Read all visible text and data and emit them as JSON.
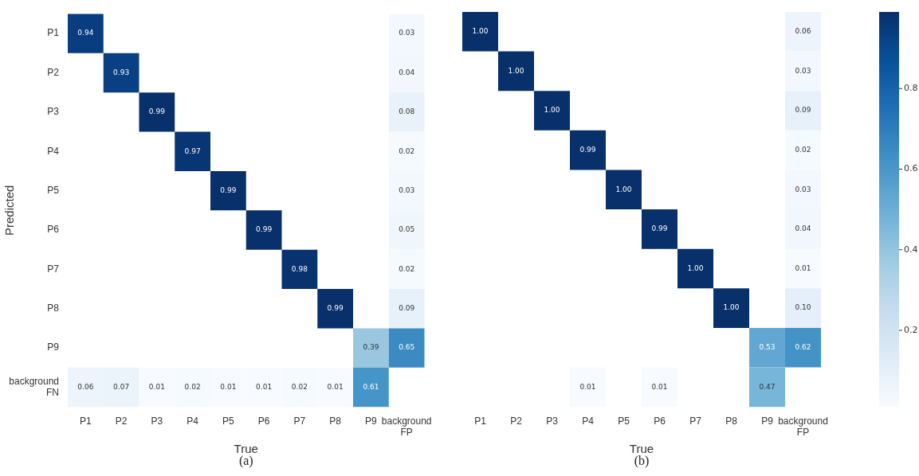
{
  "chart_data": [
    {
      "type": "heatmap",
      "xlabel": "True",
      "ylabel": "Predicted",
      "annotations": [
        "(a)"
      ],
      "categories": [
        "P1",
        "P2",
        "P3",
        "P4",
        "P5",
        "P6",
        "P7",
        "P8",
        "P9",
        "background FP"
      ],
      "y_categories": [
        "P1",
        "P2",
        "P3",
        "P4",
        "P5",
        "P6",
        "P7",
        "P8",
        "P9",
        "background FN"
      ],
      "cells": [
        [
          0.94,
          null,
          null,
          null,
          null,
          null,
          null,
          null,
          null,
          0.03
        ],
        [
          null,
          0.93,
          null,
          null,
          null,
          null,
          null,
          null,
          null,
          0.04
        ],
        [
          null,
          null,
          0.99,
          null,
          null,
          null,
          null,
          null,
          null,
          0.08
        ],
        [
          null,
          null,
          null,
          0.97,
          null,
          null,
          null,
          null,
          null,
          0.02
        ],
        [
          null,
          null,
          null,
          null,
          0.99,
          null,
          null,
          null,
          null,
          0.03
        ],
        [
          null,
          null,
          null,
          null,
          null,
          0.99,
          null,
          null,
          null,
          0.05
        ],
        [
          null,
          null,
          null,
          null,
          null,
          null,
          0.98,
          null,
          null,
          0.02
        ],
        [
          null,
          null,
          null,
          null,
          null,
          null,
          null,
          0.99,
          null,
          0.09
        ],
        [
          null,
          null,
          null,
          null,
          null,
          null,
          null,
          null,
          0.39,
          0.65
        ],
        [
          0.06,
          0.07,
          0.01,
          0.02,
          0.01,
          0.01,
          0.02,
          0.01,
          0.61,
          null
        ]
      ],
      "data_labels": true
    },
    {
      "type": "heatmap",
      "xlabel": "True",
      "annotations": [
        "(b)"
      ],
      "tick_labels": "x",
      "categories": [
        "P1",
        "P2",
        "P3",
        "P4",
        "P5",
        "P6",
        "P7",
        "P8",
        "P9",
        "background FP"
      ],
      "y_categories": [
        null,
        null,
        null,
        null,
        null,
        null,
        null,
        null,
        null,
        null
      ],
      "cells": [
        [
          1.0,
          null,
          null,
          null,
          null,
          null,
          null,
          null,
          null,
          0.06
        ],
        [
          null,
          1.0,
          null,
          null,
          null,
          null,
          null,
          null,
          null,
          0.03
        ],
        [
          null,
          null,
          1.0,
          null,
          null,
          null,
          null,
          null,
          null,
          0.09
        ],
        [
          null,
          null,
          null,
          0.99,
          null,
          null,
          null,
          null,
          null,
          0.02
        ],
        [
          null,
          null,
          null,
          null,
          1.0,
          null,
          null,
          null,
          null,
          0.03
        ],
        [
          null,
          null,
          null,
          null,
          null,
          0.99,
          null,
          null,
          null,
          0.04
        ],
        [
          null,
          null,
          null,
          null,
          null,
          null,
          1.0,
          null,
          null,
          0.01
        ],
        [
          null,
          null,
          null,
          null,
          null,
          null,
          null,
          1.0,
          null,
          0.1
        ],
        [
          null,
          null,
          null,
          null,
          null,
          null,
          null,
          null,
          0.53,
          0.62
        ],
        [
          null,
          null,
          null,
          0.01,
          null,
          0.01,
          null,
          null,
          0.47,
          null
        ]
      ],
      "cell_labels": [
        [
          "1.00",
          null,
          null,
          null,
          null,
          null,
          null,
          null,
          null,
          "0.06"
        ],
        [
          null,
          "1.00",
          null,
          null,
          null,
          null,
          null,
          null,
          null,
          "0.03"
        ],
        [
          null,
          null,
          "1.00",
          null,
          null,
          null,
          null,
          null,
          null,
          "0.09"
        ],
        [
          null,
          null,
          null,
          "0.99",
          null,
          null,
          null,
          null,
          null,
          "0.02"
        ],
        [
          null,
          null,
          null,
          null,
          "1.00",
          null,
          null,
          null,
          null,
          "0.03"
        ],
        [
          null,
          null,
          null,
          null,
          null,
          "0.99",
          null,
          null,
          null,
          "0.04"
        ],
        [
          null,
          null,
          null,
          null,
          null,
          null,
          "1.00",
          null,
          null,
          "0.01"
        ],
        [
          null,
          null,
          null,
          null,
          null,
          null,
          null,
          "1.00",
          null,
          "0.10"
        ],
        [
          null,
          null,
          null,
          null,
          null,
          null,
          null,
          null,
          "0.53",
          "0.62"
        ],
        [
          null,
          null,
          null,
          "0.01",
          null,
          "0.01",
          null,
          null,
          "0.47",
          null
        ]
      ],
      "clim": [
        0.01,
        0.99
      ],
      "cticks": [
        0.2,
        0.4,
        0.6,
        0.8
      ],
      "data_labels": true
    }
  ]
}
